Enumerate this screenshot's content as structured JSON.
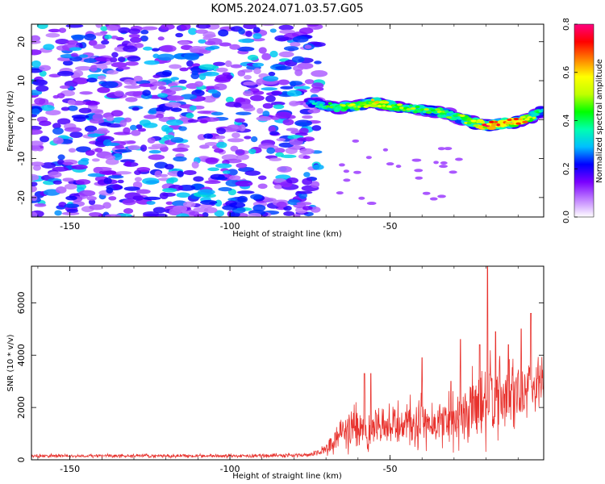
{
  "title": "KOM5.2024.071.03.57.G05",
  "chart_data": [
    {
      "type": "heatmap",
      "xlabel": "Height of straight line (km)",
      "ylabel": "Frequency (Hz)",
      "xlim": [
        -162,
        -2
      ],
      "ylim": [
        -25,
        24.5
      ],
      "xticks": [
        -150,
        -100,
        -50
      ],
      "yticks": [
        -20,
        -10,
        0,
        10,
        20
      ],
      "colorbar": {
        "label": "Normalized spectral amplitude",
        "range": [
          0,
          0.8
        ],
        "ticks": [
          0,
          0.2,
          0.4,
          0.6,
          0.8
        ],
        "tick_labels": [
          "0.0",
          "0.2",
          "0.4",
          "0.6",
          "0.8"
        ],
        "colors": [
          "#ffffff",
          "#c080ff",
          "#7a00ff",
          "#0000ff",
          "#00bfff",
          "#00ffb0",
          "#00ff00",
          "#c0ff00",
          "#ffff00",
          "#ff8000",
          "#ff0000",
          "#ff0080"
        ]
      },
      "noise_region": {
        "x_range": [
          -162,
          -72
        ],
        "y_range": [
          -25,
          24.5
        ],
        "amplitude_range": [
          0.05,
          0.35
        ]
      },
      "signal_track": {
        "x": [
          -75,
          -70,
          -65,
          -60,
          -55,
          -50,
          -45,
          -40,
          -35,
          -30,
          -25,
          -20,
          -15,
          -10,
          -5,
          -2
        ],
        "freq": [
          4.5,
          3.5,
          3.0,
          3.5,
          4.5,
          3.5,
          3.0,
          2.5,
          2.0,
          1.0,
          -0.5,
          -1.5,
          -1.0,
          -0.5,
          1.0,
          2.5
        ],
        "peak_amplitude": [
          0.35,
          0.45,
          0.55,
          0.6,
          0.7,
          0.6,
          0.55,
          0.5,
          0.55,
          0.5,
          0.6,
          0.8,
          0.75,
          0.8,
          0.55,
          0.4
        ]
      }
    },
    {
      "type": "line",
      "xlabel": "Height of straight line (km)",
      "ylabel": "SNR (10 * v/v)",
      "xlim": [
        -162,
        -2
      ],
      "ylim": [
        0,
        7400
      ],
      "xticks": [
        -150,
        -100,
        -50
      ],
      "yticks": [
        0,
        2000,
        4000,
        6000
      ],
      "color": "#e8322d",
      "envelope": {
        "x": [
          -162,
          -100,
          -75,
          -70,
          -65,
          -60,
          -55,
          -50,
          -45,
          -40,
          -35,
          -30,
          -25,
          -20,
          -15,
          -10,
          -5,
          -2
        ],
        "median": [
          150,
          150,
          180,
          400,
          1000,
          1300,
          1100,
          1200,
          1300,
          1400,
          1400,
          1600,
          1900,
          2200,
          2300,
          2600,
          2900,
          3100
        ],
        "spread": [
          80,
          80,
          100,
          300,
          800,
          1100,
          800,
          1000,
          1200,
          1200,
          1000,
          1400,
          1700,
          2200,
          1600,
          1800,
          1400,
          900
        ]
      },
      "spikes": [
        {
          "x": -58,
          "y": 3300
        },
        {
          "x": -56,
          "y": 3300
        },
        {
          "x": -40,
          "y": 3900
        },
        {
          "x": -31,
          "y": 3000
        },
        {
          "x": -28,
          "y": 4600
        },
        {
          "x": -22,
          "y": 4400
        },
        {
          "x": -19.5,
          "y": 7400
        },
        {
          "x": -17,
          "y": 4900
        },
        {
          "x": -13,
          "y": 4400
        },
        {
          "x": -9,
          "y": 5000
        },
        {
          "x": -6,
          "y": 5600
        }
      ]
    }
  ]
}
